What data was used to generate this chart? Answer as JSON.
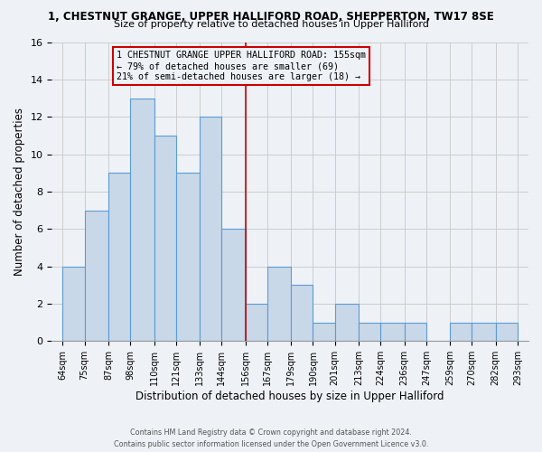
{
  "title_line1": "1, CHESTNUT GRANGE, UPPER HALLIFORD ROAD, SHEPPERTON, TW17 8SE",
  "title_line2": "Size of property relative to detached houses in Upper Halliford",
  "xlabel": "Distribution of detached houses by size in Upper Halliford",
  "ylabel": "Number of detached properties",
  "bar_edges": [
    64,
    75,
    87,
    98,
    110,
    121,
    133,
    144,
    156,
    167,
    179,
    190,
    201,
    213,
    224,
    236,
    247,
    259,
    270,
    282,
    293
  ],
  "bar_heights": [
    4,
    7,
    9,
    13,
    11,
    9,
    12,
    6,
    2,
    4,
    3,
    1,
    2,
    1,
    1,
    1,
    0,
    1,
    1,
    1
  ],
  "bar_color": "#c8d8e8",
  "bar_edge_color": "#5b9bd5",
  "bar_edge_width": 0.8,
  "vline_x": 156,
  "vline_color": "#cc0000",
  "vline_linewidth": 1.2,
  "annotation_text": "1 CHESTNUT GRANGE UPPER HALLIFORD ROAD: 155sqm\n← 79% of detached houses are smaller (69)\n21% of semi-detached houses are larger (18) →",
  "annotation_box_border_color": "#cc0000",
  "ylim": [
    0,
    16
  ],
  "yticks": [
    0,
    2,
    4,
    6,
    8,
    10,
    12,
    14,
    16
  ],
  "tick_labels": [
    "64sqm",
    "75sqm",
    "87sqm",
    "98sqm",
    "110sqm",
    "121sqm",
    "133sqm",
    "144sqm",
    "156sqm",
    "167sqm",
    "179sqm",
    "190sqm",
    "201sqm",
    "213sqm",
    "224sqm",
    "236sqm",
    "247sqm",
    "259sqm",
    "270sqm",
    "282sqm",
    "293sqm"
  ],
  "grid_color": "#cccccc",
  "background_color": "#eef2f7",
  "footer_line1": "Contains HM Land Registry data © Crown copyright and database right 2024.",
  "footer_line2": "Contains public sector information licensed under the Open Government Licence v3.0."
}
